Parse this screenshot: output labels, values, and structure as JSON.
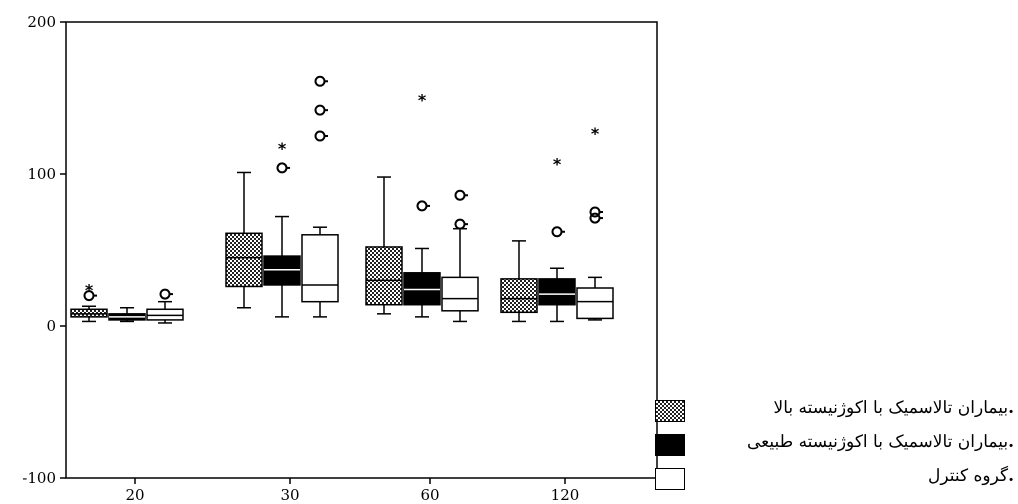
{
  "chart_data": {
    "type": "boxplot",
    "categories": [
      "20",
      "30",
      "60",
      "120"
    ],
    "y_ticks": [
      "200",
      "100",
      "0",
      "-100"
    ],
    "ylim": [
      -100,
      200
    ],
    "series": [
      {
        "name": "بیماران تالاسمیک با اکوژنیسته بالا",
        "pattern": "checker",
        "boxes": [
          {
            "whisker_low": 3,
            "q1": 6,
            "median": 8,
            "q3": 11,
            "whisker_high": 13,
            "outliers": [
              20
            ],
            "extremes": [
              24
            ]
          },
          {
            "whisker_low": 12,
            "q1": 26,
            "median": 45,
            "q3": 61,
            "whisker_high": 101,
            "outliers": [],
            "extremes": []
          },
          {
            "whisker_low": 8,
            "q1": 14,
            "median": 30,
            "q3": 52,
            "whisker_high": 98,
            "outliers": [],
            "extremes": []
          },
          {
            "whisker_low": 3,
            "q1": 9,
            "median": 18,
            "q3": 31,
            "whisker_high": 56,
            "outliers": [],
            "extremes": []
          }
        ]
      },
      {
        "name": "بیماران تالاسمیک با اکوژنیسته طبیعی",
        "pattern": "black",
        "boxes": [
          {
            "whisker_low": 3,
            "q1": 4,
            "median": 6,
            "q3": 8,
            "whisker_high": 12,
            "outliers": [],
            "extremes": []
          },
          {
            "whisker_low": 6,
            "q1": 27,
            "median": 37,
            "q3": 46,
            "whisker_high": 72,
            "outliers": [
              104
            ],
            "extremes": [
              117
            ]
          },
          {
            "whisker_low": 6,
            "q1": 14,
            "median": 24,
            "q3": 35,
            "whisker_high": 51,
            "outliers": [
              79
            ],
            "extremes": [
              149
            ]
          },
          {
            "whisker_low": 3,
            "q1": 14,
            "median": 21,
            "q3": 31,
            "whisker_high": 38,
            "outliers": [
              62
            ],
            "extremes": [
              107
            ]
          }
        ]
      },
      {
        "name": "گروه کنترل",
        "pattern": "white",
        "boxes": [
          {
            "whisker_low": 2,
            "q1": 4,
            "median": 7,
            "q3": 11,
            "whisker_high": 16,
            "outliers": [
              21
            ],
            "extremes": []
          },
          {
            "whisker_low": 6,
            "q1": 16,
            "median": 27,
            "q3": 60,
            "whisker_high": 65,
            "outliers": [
              125,
              142,
              161
            ],
            "extremes": []
          },
          {
            "whisker_low": 3,
            "q1": 10,
            "median": 18,
            "q3": 32,
            "whisker_high": 64,
            "outliers": [
              67,
              86
            ],
            "extremes": []
          },
          {
            "whisker_low": 4,
            "q1": 5,
            "median": 16,
            "q3": 25,
            "whisker_high": 32,
            "outliers": [
              71,
              75
            ],
            "extremes": [
              127
            ]
          }
        ]
      }
    ]
  }
}
